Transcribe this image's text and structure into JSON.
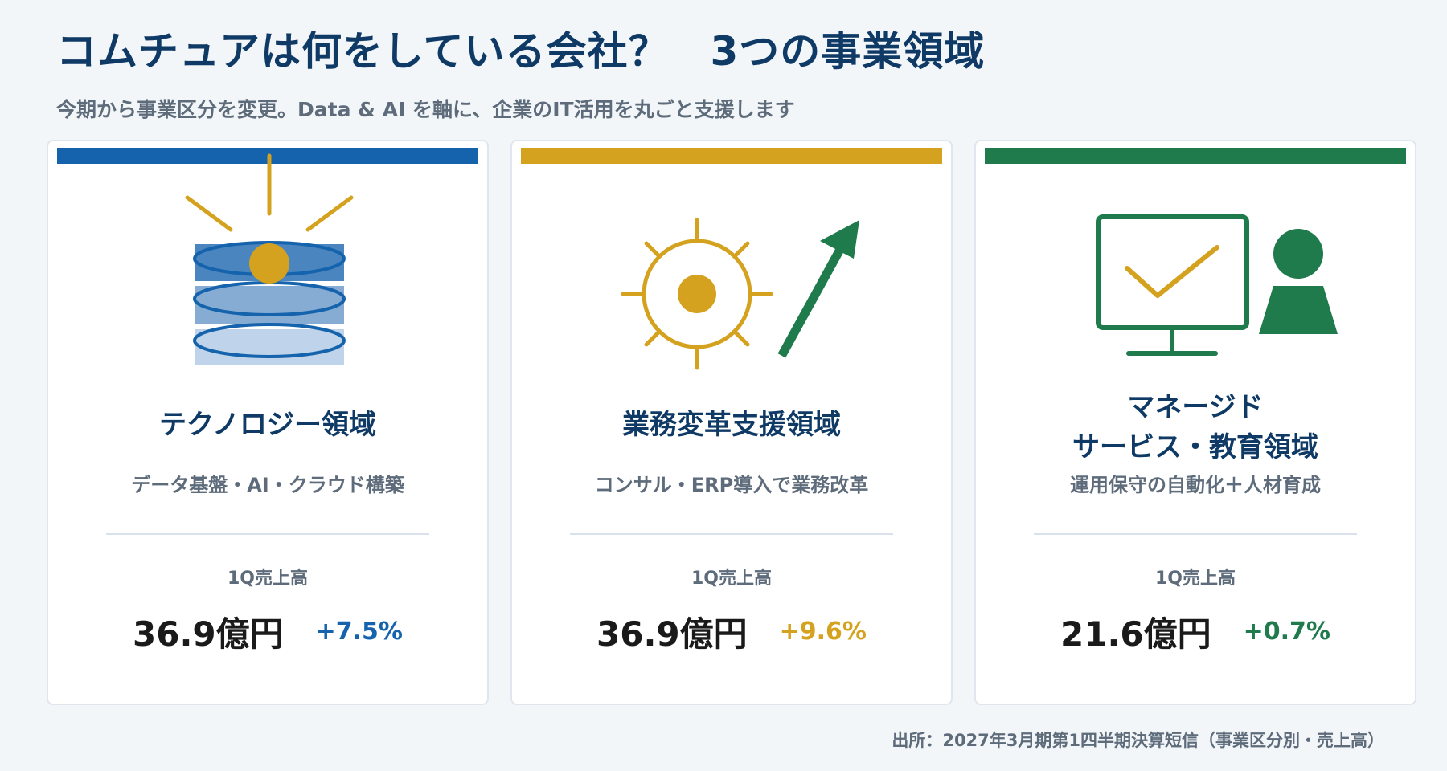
{
  "page": {
    "title": "コムチュアは何をしている会社？　3つの事業領域",
    "subtitle": "今期から事業区分を変更。Data & AI を軸に、企業のIT活用を丸ごと支援します",
    "source": "出所：2027年3月期第1四半期決算短信（事業区分別・売上高）"
  },
  "colors": {
    "navy": "#0f3a66",
    "blue": "#1463ac",
    "gold": "#d4a21e",
    "green": "#1f7a4c"
  },
  "cards": [
    {
      "title_line1": "テクノロジー領域",
      "title_line2": "",
      "description": "データ基盤・AI・クラウド構築",
      "metric_label": "1Q売上高",
      "value": "36.9億円",
      "growth": "+7.5%",
      "accent": "#1463ac",
      "icon": "data-stack-icon"
    },
    {
      "title_line1": "業務変革支援領域",
      "title_line2": "",
      "description": "コンサル・ERP導入で業務改革",
      "metric_label": "1Q売上高",
      "value": "36.9億円",
      "growth": "+9.6%",
      "accent": "#d4a21e",
      "icon": "gear-growth-icon"
    },
    {
      "title_line1": "マネージド",
      "title_line2": "サービス・教育領域",
      "description": "運用保守の自動化＋人材育成",
      "metric_label": "1Q売上高",
      "value": "21.6億円",
      "growth": "+0.7%",
      "accent": "#1f7a4c",
      "icon": "monitor-person-icon"
    }
  ]
}
